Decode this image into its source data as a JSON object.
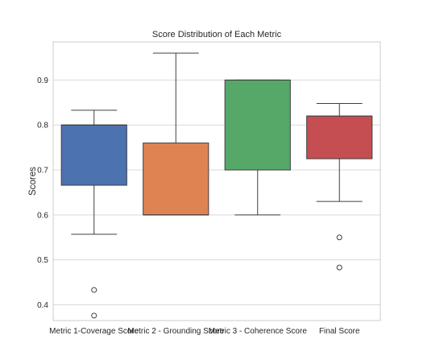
{
  "chart_data": {
    "type": "box",
    "title": "Score Distribution of Each Metric",
    "xlabel": "",
    "ylabel": "Scores",
    "ylim": [
      0.365,
      0.985
    ],
    "yticks": [
      0.4,
      0.5,
      0.6,
      0.7,
      0.8,
      0.9
    ],
    "ytick_labels": [
      "0.4",
      "0.5",
      "0.6",
      "0.7",
      "0.8",
      "0.9"
    ],
    "grid": true,
    "categories": [
      "Metric 1-Coverage Score",
      "Metric 2 - Grounding Score",
      "Metric 3 - Coherence Score",
      "Final Score"
    ],
    "boxes": [
      {
        "category": "Metric 1-Coverage Score",
        "color": "#4c72b0",
        "whisker_low": 0.557,
        "q1": 0.666,
        "median": 0.8,
        "q3": 0.8,
        "whisker_high": 0.833,
        "outliers": [
          0.433,
          0.376
        ]
      },
      {
        "category": "Metric 2 - Grounding Score",
        "color": "#dd8452",
        "whisker_low": 0.6,
        "q1": 0.6,
        "median": 0.6,
        "q3": 0.76,
        "whisker_high": 0.96,
        "outliers": []
      },
      {
        "category": "Metric 3 - Coherence Score",
        "color": "#55a868",
        "whisker_low": 0.6,
        "q1": 0.7,
        "median": 0.9,
        "q3": 0.9,
        "whisker_high": 0.9,
        "outliers": []
      },
      {
        "category": "Final Score",
        "color": "#c44e52",
        "whisker_low": 0.63,
        "q1": 0.725,
        "median": 0.82,
        "q3": 0.82,
        "whisker_high": 0.848,
        "outliers": [
          0.55,
          0.483
        ]
      }
    ]
  }
}
